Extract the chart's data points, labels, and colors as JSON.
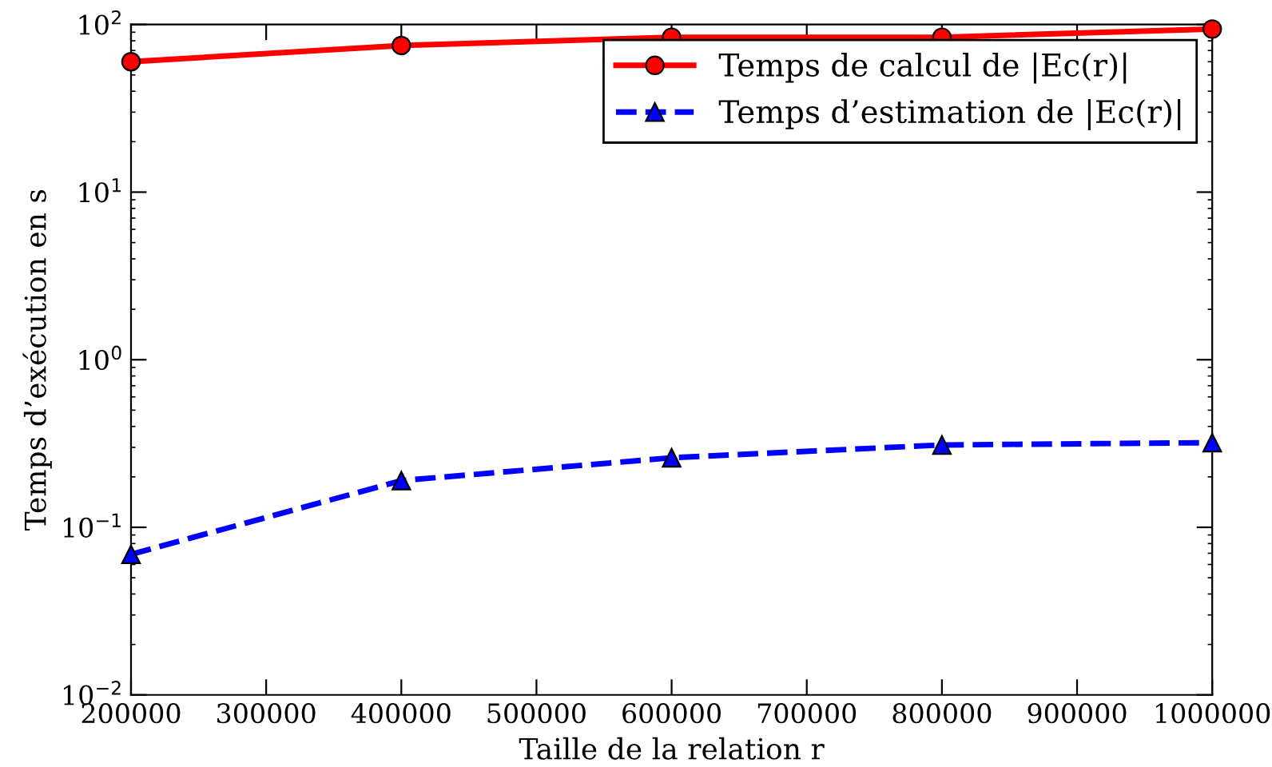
{
  "chart_data": {
    "type": "line",
    "xlabel": "Taille de la relation r",
    "ylabel": "Temps d’exécution en s",
    "x": [
      200000,
      400000,
      600000,
      800000,
      1000000
    ],
    "series": [
      {
        "name": "Temps de calcul de |Ec(r)|",
        "color": "#ff0000",
        "values": [
          60,
          75,
          84,
          84,
          94
        ],
        "marker": "circle",
        "line_style": "solid"
      },
      {
        "name": "Temps d’estimation de |Ec(r)|",
        "color": "#0000ff",
        "values": [
          0.069,
          0.19,
          0.26,
          0.31,
          0.32
        ],
        "marker": "triangle",
        "line_style": "dashed"
      }
    ],
    "log": "y",
    "xlim": [
      200000,
      1000000
    ],
    "xticks": [
      200000,
      300000,
      400000,
      500000,
      600000,
      700000,
      800000,
      900000,
      1000000
    ],
    "ylim": [
      0.01,
      100
    ],
    "yticks": [
      {
        "value": 0.01,
        "label": "10$^{−2}$"
      },
      {
        "value": 0.1,
        "label": "10$^{−1}$"
      },
      {
        "value": 1,
        "label": "10$^{0}$"
      },
      {
        "value": 10,
        "label": "10$^{1}$"
      },
      {
        "value": 100,
        "label": "10$^{2}$"
      }
    ],
    "grid": false,
    "legend": "top right"
  }
}
